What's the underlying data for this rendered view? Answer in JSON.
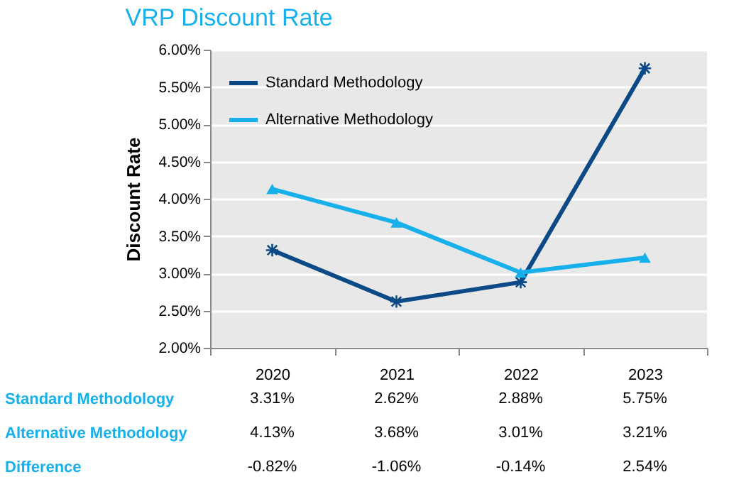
{
  "chart_data": {
    "type": "line",
    "title": "VRP Discount Rate",
    "ylabel": "Discount  Rate",
    "categories": [
      "2020",
      "2021",
      "2022",
      "2023"
    ],
    "series": [
      {
        "name": "Standard Methodology",
        "color": "#0b4a86",
        "marker": "cross",
        "values": [
          3.31,
          2.62,
          2.88,
          5.75
        ],
        "value_labels": [
          "3.31%",
          "2.62%",
          "2.88%",
          "5.75%"
        ]
      },
      {
        "name": "Alternative Methodology",
        "color": "#18b0ea",
        "marker": "triangle",
        "values": [
          4.13,
          3.68,
          3.01,
          3.21
        ],
        "value_labels": [
          "4.13%",
          "3.68%",
          "3.01%",
          "3.21%"
        ]
      }
    ],
    "annotations": [
      "Difference",
      "-0.82%",
      "-1.06%",
      "-0.14%",
      "2.54%"
    ],
    "ylim": [
      2,
      6
    ],
    "yticks": [
      {
        "value": 2,
        "label": "2.00%"
      },
      {
        "value": 2.5,
        "label": "2.50%"
      },
      {
        "value": 3,
        "label": "3.00%"
      },
      {
        "value": 3.5,
        "label": "3.50%"
      },
      {
        "value": 4,
        "label": "4.00%"
      },
      {
        "value": 4.5,
        "label": "4.50%"
      },
      {
        "value": 5,
        "label": "5.00%"
      },
      {
        "value": 5.5,
        "label": "5.50%"
      },
      {
        "value": 6,
        "label": "6.00%"
      }
    ],
    "grid": "y",
    "legend": "top left",
    "line_style": "solid"
  }
}
